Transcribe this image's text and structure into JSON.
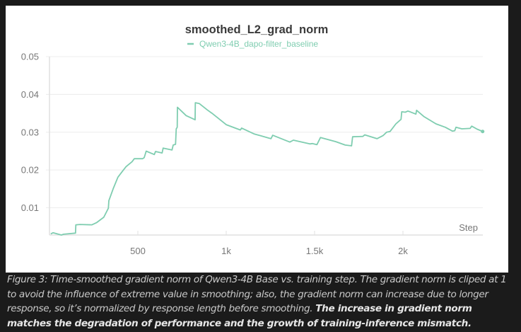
{
  "chart_data": {
    "type": "line",
    "title": "smoothed_L2_grad_norm",
    "xlabel": "Step",
    "ylabel": "",
    "xlim": [
      0,
      2452
    ],
    "ylim": [
      0.0028,
      0.05
    ],
    "grid": true,
    "legend_placement": "top-center",
    "x_ticks": [
      {
        "value": 500,
        "label": "500"
      },
      {
        "value": 1000,
        "label": "1k"
      },
      {
        "value": 1500,
        "label": "1.5k"
      },
      {
        "value": 2000,
        "label": "2k"
      }
    ],
    "y_ticks": [
      {
        "value": 0.01,
        "label": "0.01"
      },
      {
        "value": 0.02,
        "label": "0.02"
      },
      {
        "value": 0.03,
        "label": "0.03"
      },
      {
        "value": 0.04,
        "label": "0.04"
      },
      {
        "value": 0.05,
        "label": "0.05"
      }
    ],
    "series": [
      {
        "name": "Qwen3-4B_dapo-filter_baseline",
        "color": "#7fcdb0",
        "x": [
          7,
          20,
          67,
          80,
          147,
          149,
          173,
          240,
          267,
          307,
          333,
          336,
          360,
          387,
          413,
          433,
          467,
          480,
          527,
          536,
          547,
          593,
          600,
          637,
          643,
          693,
          700,
          713,
          717,
          723,
          724,
          773,
          824,
          825,
          847,
          893,
          920,
          1000,
          1080,
          1087,
          1160,
          1193,
          1253,
          1263,
          1360,
          1380,
          1473,
          1487,
          1513,
          1533,
          1620,
          1673,
          1709,
          1715,
          1773,
          1784,
          1853,
          1887,
          1907,
          1927,
          1960,
          1989,
          1993,
          2013,
          2027,
          2040,
          2073,
          2077,
          2120,
          2187,
          2240,
          2280,
          2293,
          2300,
          2333,
          2380,
          2389,
          2420,
          2451
        ],
        "values": [
          0.0031,
          0.0034,
          0.0028,
          0.003,
          0.0033,
          0.0055,
          0.0056,
          0.0055,
          0.0061,
          0.0075,
          0.0099,
          0.0119,
          0.015,
          0.0181,
          0.0197,
          0.0209,
          0.0222,
          0.023,
          0.023,
          0.0233,
          0.025,
          0.0241,
          0.0249,
          0.0245,
          0.0258,
          0.0253,
          0.0266,
          0.0268,
          0.0309,
          0.0313,
          0.0366,
          0.0344,
          0.0333,
          0.0378,
          0.0376,
          0.0359,
          0.035,
          0.032,
          0.0306,
          0.0311,
          0.0295,
          0.0291,
          0.0283,
          0.0292,
          0.0274,
          0.0279,
          0.0269,
          0.027,
          0.0267,
          0.0286,
          0.0275,
          0.0266,
          0.0264,
          0.0288,
          0.0289,
          0.0293,
          0.0283,
          0.0291,
          0.03,
          0.0302,
          0.0322,
          0.0334,
          0.0354,
          0.0353,
          0.0356,
          0.0354,
          0.0348,
          0.0358,
          0.0341,
          0.0322,
          0.0313,
          0.0303,
          0.0304,
          0.0313,
          0.0309,
          0.031,
          0.0316,
          0.0308,
          0.0302
        ]
      }
    ]
  },
  "caption": {
    "normal": "Figure 3: Time-smoothed gradient norm of Qwen3-4B Base vs. training step. The gradient norm is cliped at 1 to avoid the influence of extreme value in smoothing; also, the gradient norm can increase due to longer response, so it’s normalized by response length before smoothing. ",
    "bold": "The increase in gradient norm matches the degradation of performance and the growth of training-inference mismatch."
  }
}
